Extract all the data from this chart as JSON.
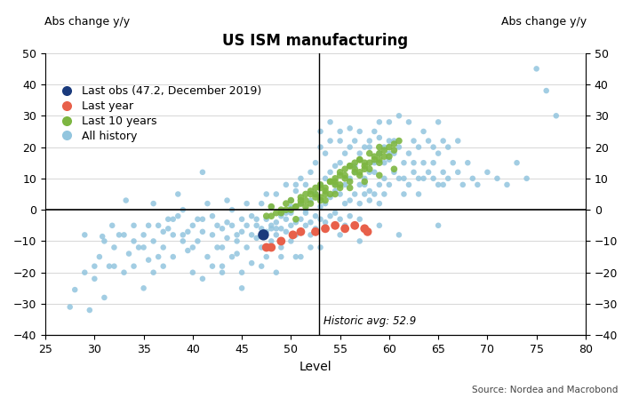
{
  "title": "US ISM manufacturing",
  "xlabel": "Level",
  "ylabel_label": "Abs change y/y",
  "xlim": [
    25,
    80
  ],
  "ylim": [
    -40,
    50
  ],
  "xticks": [
    25,
    30,
    35,
    40,
    45,
    50,
    55,
    60,
    65,
    70,
    75,
    80
  ],
  "yticks": [
    -40,
    -30,
    -20,
    -10,
    0,
    10,
    20,
    30,
    40,
    50
  ],
  "historic_avg": 52.9,
  "historic_avg_label": "Historic avg: 52.9",
  "source_text": "Source: Nordea and Macrobond",
  "legend_items": [
    {
      "label": "Last obs (47.2, December 2019)",
      "color": "#1a3a7c"
    },
    {
      "label": "Last year",
      "color": "#e8604a"
    },
    {
      "label": "Last 10 years",
      "color": "#7db641"
    },
    {
      "label": "All history",
      "color": "#92c5de"
    }
  ],
  "all_history": [
    [
      27.5,
      -31.0
    ],
    [
      28.0,
      -25.5
    ],
    [
      29.0,
      -20.0
    ],
    [
      29.5,
      -32.0
    ],
    [
      30.0,
      -22.0
    ],
    [
      30.5,
      -15.0
    ],
    [
      30.8,
      -8.5
    ],
    [
      31.0,
      -28.0
    ],
    [
      31.5,
      -18.0
    ],
    [
      31.8,
      -5.0
    ],
    [
      32.0,
      -12.0
    ],
    [
      32.5,
      -8.0
    ],
    [
      33.0,
      -20.0
    ],
    [
      33.2,
      3.0
    ],
    [
      33.5,
      -14.0
    ],
    [
      34.0,
      -5.0
    ],
    [
      34.0,
      -10.0
    ],
    [
      34.5,
      -12.0
    ],
    [
      35.0,
      -25.0
    ],
    [
      35.0,
      -8.0
    ],
    [
      35.5,
      -16.0
    ],
    [
      35.5,
      -5.0
    ],
    [
      36.0,
      -10.0
    ],
    [
      36.0,
      2.0
    ],
    [
      36.5,
      -5.0
    ],
    [
      36.5,
      -15.0
    ],
    [
      37.0,
      -18.0
    ],
    [
      37.0,
      -12.0
    ],
    [
      37.5,
      -6.0
    ],
    [
      37.5,
      -3.0
    ],
    [
      38.0,
      -3.0
    ],
    [
      38.0,
      -15.0
    ],
    [
      38.5,
      -2.0
    ],
    [
      38.5,
      5.0
    ],
    [
      39.0,
      -8.0
    ],
    [
      39.0,
      0.0
    ],
    [
      39.5,
      -13.0
    ],
    [
      39.5,
      -7.0
    ],
    [
      40.0,
      -5.0
    ],
    [
      40.0,
      -20.0
    ],
    [
      40.5,
      -10.0
    ],
    [
      40.5,
      -3.0
    ],
    [
      41.0,
      -7.0
    ],
    [
      41.0,
      -3.0
    ],
    [
      41.0,
      12.0
    ],
    [
      41.5,
      -15.0
    ],
    [
      41.5,
      2.0
    ],
    [
      42.0,
      -8.0
    ],
    [
      42.0,
      -2.0
    ],
    [
      42.5,
      -12.0
    ],
    [
      42.5,
      -5.0
    ],
    [
      43.0,
      -6.0
    ],
    [
      43.0,
      -18.0
    ],
    [
      43.0,
      -12.0
    ],
    [
      43.5,
      -4.0
    ],
    [
      43.5,
      -9.0
    ],
    [
      43.5,
      3.0
    ],
    [
      44.0,
      -5.0
    ],
    [
      44.0,
      0.0
    ],
    [
      44.5,
      -10.0
    ],
    [
      44.5,
      -14.0
    ],
    [
      44.5,
      -8.0
    ],
    [
      45.0,
      -7.0
    ],
    [
      45.0,
      -3.0
    ],
    [
      45.0,
      -20.0
    ],
    [
      45.0,
      -25.0
    ],
    [
      45.5,
      -5.0
    ],
    [
      45.5,
      -12.0
    ],
    [
      45.5,
      2.0
    ],
    [
      46.0,
      -8.0
    ],
    [
      46.0,
      -2.0
    ],
    [
      46.0,
      -17.0
    ],
    [
      46.5,
      -9.0
    ],
    [
      46.5,
      -5.0
    ],
    [
      46.5,
      -3.0
    ],
    [
      47.0,
      -6.0
    ],
    [
      47.0,
      -12.0
    ],
    [
      47.0,
      2.0
    ],
    [
      47.0,
      -18.0
    ],
    [
      47.5,
      -7.0
    ],
    [
      47.5,
      -3.0
    ],
    [
      47.5,
      -15.0
    ],
    [
      47.5,
      5.0
    ],
    [
      48.0,
      -5.0
    ],
    [
      48.0,
      -10.0
    ],
    [
      48.0,
      1.0
    ],
    [
      48.0,
      -6.0
    ],
    [
      48.5,
      -8.0
    ],
    [
      48.5,
      -4.0
    ],
    [
      48.5,
      -20.0
    ],
    [
      48.5,
      5.0
    ],
    [
      48.5,
      -6.0
    ],
    [
      49.0,
      -6.0
    ],
    [
      49.0,
      -2.0
    ],
    [
      49.0,
      -12.0
    ],
    [
      49.0,
      -15.0
    ],
    [
      49.5,
      -7.0
    ],
    [
      49.5,
      -3.0
    ],
    [
      49.5,
      8.0
    ],
    [
      49.5,
      -1.0
    ],
    [
      50.0,
      -5.0
    ],
    [
      50.0,
      -10.0
    ],
    [
      50.0,
      3.0
    ],
    [
      50.0,
      -1.0
    ],
    [
      50.0,
      1.0
    ],
    [
      50.5,
      -8.0
    ],
    [
      50.5,
      -4.0
    ],
    [
      50.5,
      6.0
    ],
    [
      50.5,
      -15.0
    ],
    [
      50.5,
      8.0
    ],
    [
      51.0,
      -3.0
    ],
    [
      51.0,
      -7.0
    ],
    [
      51.0,
      2.0
    ],
    [
      51.0,
      10.0
    ],
    [
      51.0,
      -15.0
    ],
    [
      51.5,
      -5.0
    ],
    [
      51.5,
      -1.0
    ],
    [
      51.5,
      8.0
    ],
    [
      51.5,
      0.0
    ],
    [
      52.0,
      -4.0
    ],
    [
      52.0,
      -8.0
    ],
    [
      52.0,
      3.0
    ],
    [
      52.0,
      12.0
    ],
    [
      52.0,
      -12.0
    ],
    [
      52.5,
      -2.0
    ],
    [
      52.5,
      -6.0
    ],
    [
      52.5,
      5.0
    ],
    [
      52.5,
      15.0
    ],
    [
      53.0,
      -3.0
    ],
    [
      53.0,
      1.0
    ],
    [
      53.0,
      8.0
    ],
    [
      53.0,
      20.0
    ],
    [
      53.0,
      -12.0
    ],
    [
      53.5,
      -4.0
    ],
    [
      53.5,
      2.0
    ],
    [
      53.5,
      10.0
    ],
    [
      53.5,
      18.0
    ],
    [
      54.0,
      -2.0
    ],
    [
      54.0,
      4.0
    ],
    [
      54.0,
      12.0
    ],
    [
      54.0,
      22.0
    ],
    [
      54.5,
      -1.0
    ],
    [
      54.5,
      6.0
    ],
    [
      54.5,
      14.0
    ],
    [
      54.5,
      8.0
    ],
    [
      55.0,
      -3.0
    ],
    [
      55.0,
      5.0
    ],
    [
      55.0,
      15.0
    ],
    [
      55.0,
      25.0
    ],
    [
      55.0,
      -8.0
    ],
    [
      55.5,
      2.0
    ],
    [
      55.5,
      8.0
    ],
    [
      55.5,
      18.0
    ],
    [
      55.5,
      -5.0
    ],
    [
      56.0,
      3.0
    ],
    [
      56.0,
      10.0
    ],
    [
      56.0,
      20.0
    ],
    [
      56.0,
      -2.0
    ],
    [
      56.5,
      5.0
    ],
    [
      56.5,
      12.0
    ],
    [
      56.5,
      22.0
    ],
    [
      56.5,
      14.0
    ],
    [
      57.0,
      2.0
    ],
    [
      57.0,
      8.0
    ],
    [
      57.0,
      18.0
    ],
    [
      57.0,
      -3.0
    ],
    [
      57.0,
      -10.0
    ],
    [
      57.5,
      5.0
    ],
    [
      57.5,
      10.0
    ],
    [
      57.5,
      20.0
    ],
    [
      57.5,
      8.0
    ],
    [
      58.0,
      3.0
    ],
    [
      58.0,
      12.0
    ],
    [
      58.0,
      22.0
    ],
    [
      58.0,
      6.0
    ],
    [
      58.5,
      5.0
    ],
    [
      58.5,
      15.0
    ],
    [
      58.5,
      25.0
    ],
    [
      58.5,
      12.0
    ],
    [
      59.0,
      8.0
    ],
    [
      59.0,
      18.0
    ],
    [
      59.0,
      28.0
    ],
    [
      59.0,
      2.0
    ],
    [
      59.0,
      -5.0
    ],
    [
      59.5,
      10.0
    ],
    [
      59.5,
      20.0
    ],
    [
      59.5,
      5.0
    ],
    [
      59.5,
      15.0
    ],
    [
      60.0,
      8.0
    ],
    [
      60.0,
      18.0
    ],
    [
      60.0,
      28.0
    ],
    [
      60.0,
      16.0
    ],
    [
      60.5,
      12.0
    ],
    [
      60.5,
      22.0
    ],
    [
      60.5,
      18.0
    ],
    [
      61.0,
      10.0
    ],
    [
      61.0,
      20.0
    ],
    [
      61.0,
      30.0
    ],
    [
      61.0,
      -8.0
    ],
    [
      61.5,
      5.0
    ],
    [
      61.5,
      15.0
    ],
    [
      61.5,
      10.0
    ],
    [
      62.0,
      8.0
    ],
    [
      62.0,
      18.0
    ],
    [
      62.0,
      28.0
    ],
    [
      62.5,
      12.0
    ],
    [
      62.5,
      22.0
    ],
    [
      62.5,
      15.0
    ],
    [
      63.0,
      10.0
    ],
    [
      63.0,
      20.0
    ],
    [
      63.0,
      5.0
    ],
    [
      63.5,
      15.0
    ],
    [
      63.5,
      25.0
    ],
    [
      63.5,
      10.0
    ],
    [
      64.0,
      12.0
    ],
    [
      64.0,
      22.0
    ],
    [
      64.5,
      10.0
    ],
    [
      64.5,
      20.0
    ],
    [
      64.5,
      15.0
    ],
    [
      65.0,
      8.0
    ],
    [
      65.0,
      18.0
    ],
    [
      65.0,
      28.0
    ],
    [
      65.0,
      -5.0
    ],
    [
      65.5,
      12.0
    ],
    [
      65.5,
      22.0
    ],
    [
      65.5,
      8.0
    ],
    [
      66.0,
      10.0
    ],
    [
      66.0,
      20.0
    ],
    [
      66.5,
      15.0
    ],
    [
      67.0,
      12.0
    ],
    [
      67.0,
      22.0
    ],
    [
      67.5,
      8.0
    ],
    [
      68.0,
      15.0
    ],
    [
      68.5,
      10.0
    ],
    [
      69.0,
      8.0
    ],
    [
      70.0,
      12.0
    ],
    [
      71.0,
      10.0
    ],
    [
      72.0,
      8.0
    ],
    [
      73.0,
      15.0
    ],
    [
      74.0,
      10.0
    ],
    [
      75.0,
      45.0
    ],
    [
      76.0,
      38.0
    ],
    [
      77.0,
      30.0
    ],
    [
      53.0,
      25.0
    ],
    [
      54.0,
      28.0
    ],
    [
      55.0,
      22.0
    ],
    [
      56.0,
      26.0
    ],
    [
      57.0,
      25.0
    ],
    [
      58.0,
      20.0
    ],
    [
      59.0,
      23.0
    ],
    [
      60.0,
      22.0
    ],
    [
      44.0,
      -15.0
    ],
    [
      43.0,
      -20.0
    ],
    [
      42.0,
      -18.0
    ],
    [
      41.0,
      -22.0
    ],
    [
      40.0,
      -12.0
    ],
    [
      39.0,
      -10.0
    ],
    [
      38.0,
      -8.0
    ],
    [
      37.0,
      -7.0
    ],
    [
      36.0,
      -20.0
    ],
    [
      35.0,
      -12.0
    ],
    [
      34.0,
      -18.0
    ],
    [
      33.0,
      -8.0
    ],
    [
      32.0,
      -18.0
    ],
    [
      31.0,
      -10.0
    ],
    [
      30.0,
      -18.0
    ],
    [
      29.0,
      -8.0
    ]
  ],
  "last_10_years": [
    [
      47.5,
      -2.0
    ],
    [
      48.0,
      1.0
    ],
    [
      48.5,
      -1.0
    ],
    [
      49.0,
      0.0
    ],
    [
      49.5,
      2.0
    ],
    [
      50.0,
      3.0
    ],
    [
      50.5,
      1.0
    ],
    [
      51.0,
      4.0
    ],
    [
      51.5,
      5.0
    ],
    [
      52.0,
      6.0
    ],
    [
      52.5,
      7.0
    ],
    [
      53.0,
      8.0
    ],
    [
      53.5,
      5.0
    ],
    [
      54.0,
      9.0
    ],
    [
      54.5,
      10.0
    ],
    [
      55.0,
      11.0
    ],
    [
      55.5,
      13.0
    ],
    [
      56.0,
      14.0
    ],
    [
      56.5,
      15.0
    ],
    [
      57.0,
      16.0
    ],
    [
      57.5,
      14.0
    ],
    [
      58.0,
      15.0
    ],
    [
      58.5,
      17.0
    ],
    [
      59.0,
      18.0
    ],
    [
      59.5,
      19.0
    ],
    [
      60.0,
      20.0
    ],
    [
      60.5,
      21.0
    ],
    [
      61.0,
      22.0
    ],
    [
      52.0,
      2.0
    ],
    [
      53.0,
      3.0
    ],
    [
      54.0,
      5.0
    ],
    [
      55.0,
      7.0
    ],
    [
      56.0,
      9.0
    ],
    [
      57.0,
      11.0
    ],
    [
      58.0,
      13.0
    ],
    [
      59.0,
      15.0
    ],
    [
      60.0,
      17.0
    ],
    [
      50.0,
      0.0
    ],
    [
      51.0,
      2.0
    ],
    [
      52.5,
      4.0
    ],
    [
      53.5,
      6.0
    ],
    [
      54.5,
      8.0
    ],
    [
      55.5,
      10.0
    ],
    [
      56.5,
      12.0
    ],
    [
      57.5,
      13.0
    ],
    [
      49.0,
      -1.0
    ],
    [
      50.5,
      1.0
    ],
    [
      51.5,
      3.0
    ],
    [
      52.5,
      5.0
    ],
    [
      53.5,
      7.0
    ],
    [
      54.5,
      9.0
    ],
    [
      55.5,
      11.0
    ],
    [
      56.5,
      13.0
    ],
    [
      57.5,
      15.0
    ],
    [
      58.5,
      16.0
    ],
    [
      59.5,
      17.0
    ],
    [
      60.5,
      19.0
    ],
    [
      48.0,
      -2.0
    ],
    [
      49.5,
      0.0
    ],
    [
      51.0,
      3.0
    ],
    [
      52.0,
      5.0
    ],
    [
      53.0,
      7.0
    ],
    [
      54.0,
      9.0
    ],
    [
      55.0,
      12.0
    ],
    [
      56.0,
      14.0
    ],
    [
      57.0,
      16.0
    ],
    [
      58.0,
      18.0
    ],
    [
      59.0,
      20.0
    ],
    [
      53.5,
      3.0
    ],
    [
      54.5,
      5.0
    ],
    [
      56.0,
      7.0
    ],
    [
      57.5,
      9.0
    ],
    [
      59.0,
      11.0
    ],
    [
      60.5,
      13.0
    ],
    [
      50.5,
      -3.0
    ],
    [
      51.5,
      1.0
    ],
    [
      53.0,
      4.0
    ],
    [
      55.0,
      8.0
    ],
    [
      57.0,
      12.0
    ],
    [
      59.0,
      16.0
    ]
  ],
  "last_year": [
    [
      47.5,
      -12.0
    ],
    [
      48.0,
      -12.0
    ],
    [
      49.0,
      -10.0
    ],
    [
      50.2,
      -8.0
    ],
    [
      51.0,
      -7.0
    ],
    [
      52.5,
      -7.0
    ],
    [
      53.5,
      -6.0
    ],
    [
      54.5,
      -5.0
    ],
    [
      55.5,
      -6.0
    ],
    [
      56.5,
      -5.0
    ],
    [
      57.5,
      -6.0
    ],
    [
      57.8,
      -7.0
    ]
  ],
  "last_obs": [
    [
      47.2,
      -8.0
    ]
  ],
  "colors": {
    "all_history": "#92c5de",
    "last_10_years": "#7db641",
    "last_year": "#e8604a",
    "last_obs": "#1a3a7c"
  },
  "marker_sizes": {
    "all_history": 22,
    "last_10_years": 30,
    "last_year": 50,
    "last_obs": 80
  }
}
